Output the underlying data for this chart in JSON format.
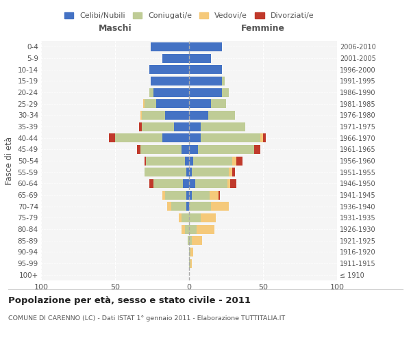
{
  "age_groups": [
    "100+",
    "95-99",
    "90-94",
    "85-89",
    "80-84",
    "75-79",
    "70-74",
    "65-69",
    "60-64",
    "55-59",
    "50-54",
    "45-49",
    "40-44",
    "35-39",
    "30-34",
    "25-29",
    "20-24",
    "15-19",
    "10-14",
    "5-9",
    "0-4"
  ],
  "birth_years": [
    "≤ 1910",
    "1911-1915",
    "1916-1920",
    "1921-1925",
    "1926-1930",
    "1931-1935",
    "1936-1940",
    "1941-1945",
    "1946-1950",
    "1951-1955",
    "1956-1960",
    "1961-1965",
    "1966-1970",
    "1971-1975",
    "1976-1980",
    "1981-1985",
    "1986-1990",
    "1991-1995",
    "1996-2000",
    "2001-2005",
    "2006-2010"
  ],
  "maschi": {
    "celibi": [
      0,
      0,
      0,
      0,
      0,
      0,
      2,
      2,
      4,
      2,
      3,
      5,
      18,
      10,
      16,
      22,
      24,
      26,
      27,
      18,
      26
    ],
    "coniugati": [
      0,
      0,
      0,
      1,
      3,
      5,
      10,
      14,
      20,
      28,
      26,
      28,
      32,
      22,
      16,
      8,
      3,
      0,
      0,
      0,
      0
    ],
    "vedovi": [
      0,
      0,
      0,
      0,
      2,
      2,
      3,
      2,
      0,
      0,
      0,
      0,
      0,
      0,
      1,
      1,
      0,
      0,
      0,
      0,
      0
    ],
    "divorziati": [
      0,
      0,
      0,
      0,
      0,
      0,
      0,
      0,
      3,
      0,
      1,
      2,
      4,
      2,
      0,
      0,
      0,
      0,
      0,
      0,
      0
    ]
  },
  "femmine": {
    "nubili": [
      0,
      0,
      0,
      0,
      0,
      0,
      0,
      2,
      4,
      2,
      3,
      6,
      8,
      8,
      13,
      15,
      22,
      22,
      22,
      15,
      22
    ],
    "coniugate": [
      0,
      1,
      1,
      2,
      5,
      8,
      15,
      12,
      22,
      25,
      26,
      38,
      40,
      30,
      18,
      10,
      5,
      2,
      0,
      0,
      0
    ],
    "vedove": [
      0,
      1,
      2,
      7,
      12,
      10,
      12,
      6,
      2,
      2,
      3,
      0,
      2,
      0,
      0,
      0,
      0,
      0,
      0,
      0,
      0
    ],
    "divorziate": [
      0,
      0,
      0,
      0,
      0,
      0,
      0,
      1,
      4,
      2,
      4,
      4,
      2,
      0,
      0,
      0,
      0,
      0,
      0,
      0,
      0
    ]
  },
  "colors": {
    "celibi": "#4472C4",
    "coniugati": "#BFCC96",
    "vedovi": "#F5C97A",
    "divorziati": "#C0392B"
  },
  "xlim": 100,
  "title": "Popolazione per età, sesso e stato civile - 2011",
  "subtitle": "COMUNE DI CARENNO (LC) - Dati ISTAT 1° gennaio 2011 - Elaborazione TUTTITALIA.IT",
  "ylabel_left": "Fasce di età",
  "legend_labels": [
    "Celibi/Nubili",
    "Coniugati/e",
    "Vedovi/e",
    "Divorziati/e"
  ]
}
